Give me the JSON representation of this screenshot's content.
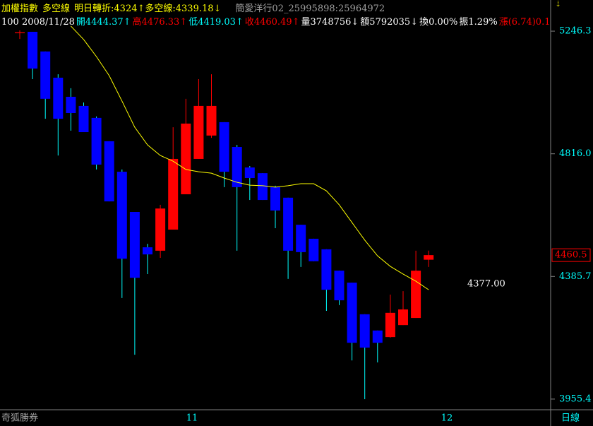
{
  "header": {
    "line1": [
      "加權指數",
      "多空線",
      "明日轉折:4324↑多空線:4339.18↓",
      "簡愛洋行02_25995898:25964972"
    ],
    "line2": [
      {
        "text": "100 2008/11/28",
        "color": "#ffffff"
      },
      {
        "text": "開4444.37↑",
        "color": "#00ffff"
      },
      {
        "text": "高4476.33↑",
        "color": "#ff0000"
      },
      {
        "text": "低4419.03↑",
        "color": "#00ffff"
      },
      {
        "text": "收4460.49↑",
        "color": "#ff0000"
      },
      {
        "text": "量3748756↓",
        "color": "#ffffff"
      },
      {
        "text": "額5792035↓",
        "color": "#ffffff"
      },
      {
        "text": "換0.00%",
        "color": "#ffffff"
      },
      {
        "text": "振1.29%",
        "color": "#ffffff"
      },
      {
        "text": "漲(6.74)0.1",
        "color": "#ff0000"
      }
    ]
  },
  "footer": {
    "brand": "奇狐勝券",
    "period": "日線",
    "x_labels": [
      "11",
      "12"
    ]
  },
  "chart_data": {
    "type": "candlestick",
    "open": [
      5239,
      5244,
      5175,
      5083,
      5016,
      4984,
      4942,
      4860,
      4753,
      4612,
      4488,
      4476,
      4550,
      4674,
      4798,
      4880,
      4927,
      4840,
      4768,
      4748,
      4699,
      4662,
      4567,
      4518,
      4481,
      4406,
      4364,
      4253,
      4196,
      4173,
      4215,
      4240,
      4444.37
    ],
    "high": [
      5249,
      5244,
      5175,
      5095,
      5046,
      4996,
      4947,
      4860,
      4761,
      4612,
      4500,
      4637,
      4909,
      5009,
      5078,
      5095,
      4927,
      4847,
      4773,
      4748,
      4704,
      4662,
      4567,
      4518,
      4481,
      4406,
      4364,
      4253,
      4196,
      4322,
      4334,
      4476,
      4476.33
    ],
    "low": [
      5219,
      5078,
      4939,
      4810,
      4897,
      4892,
      4761,
      4649,
      4310,
      4111,
      4394,
      4451,
      4550,
      4674,
      4798,
      4872,
      4699,
      4476,
      4654,
      4654,
      4555,
      4377,
      4419,
      4439,
      4265,
      4285,
      4091,
      3955,
      4084,
      4171,
      4215,
      4240,
      4419.03
    ],
    "close": [
      5242,
      5115,
      5009,
      4939,
      4959,
      4892,
      4778,
      4649,
      4448,
      4381,
      4463,
      4624,
      4798,
      4922,
      4984,
      4984,
      4753,
      4699,
      4731,
      4654,
      4617,
      4476,
      4471,
      4439,
      4339,
      4302,
      4153,
      4136,
      4153,
      4258,
      4270,
      4406,
      4460.49
    ],
    "up_color": "#ff0000",
    "down_color": "#0000ff",
    "down_wick_color": "#00ffff",
    "ma": {
      "color": "#ffff00",
      "values": [
        null,
        null,
        null,
        null,
        5264,
        5217,
        5157,
        5090,
        5001,
        4909,
        4847,
        4810,
        4790,
        4761,
        4753,
        4748,
        4731,
        4716,
        4706,
        4704,
        4699,
        4704,
        4711,
        4711,
        4686,
        4637,
        4575,
        4513,
        4458,
        4421,
        4394,
        4369,
        4339
      ]
    },
    "ylim": [
      3918,
      5306
    ],
    "yticks": [
      5246.3,
      {
        "value": 4816,
        "label": "4816.0"
      },
      4385.7,
      3955.4
    ],
    "last_price_label": 4460.5,
    "annotation": "4377.00"
  }
}
